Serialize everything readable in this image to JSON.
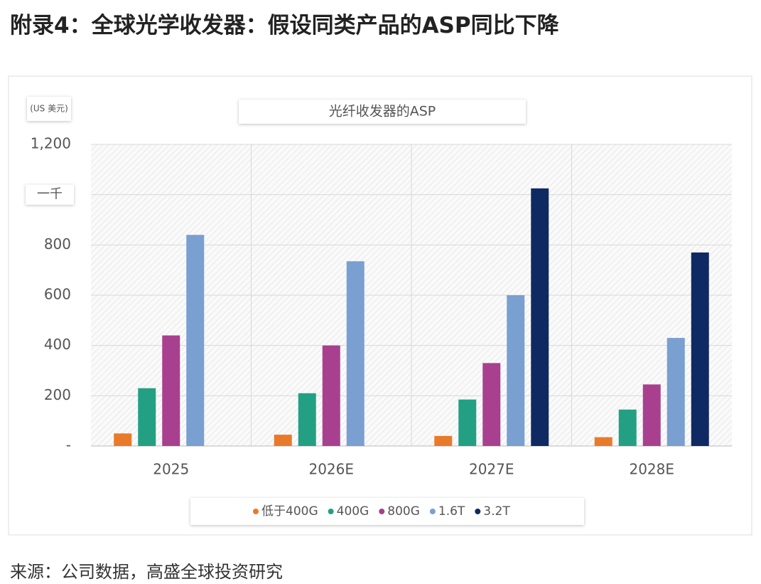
{
  "heading": "附录4：全球光学收发器：假设同类产品的ASP同比下降",
  "source": "来源：公司数据，高盛全球投资研究",
  "chart_data": {
    "type": "bar",
    "title": "光纤收发器的ASP",
    "y_label": "(US 美元)",
    "categories": [
      "2025",
      "2026E",
      "2027E",
      "2028E"
    ],
    "series": [
      {
        "name": "低于400G",
        "color": "#e87a2a",
        "values": [
          50,
          45,
          40,
          35
        ]
      },
      {
        "name": "400G",
        "color": "#23a083",
        "values": [
          230,
          210,
          185,
          145
        ]
      },
      {
        "name": "800G",
        "color": "#a8408f",
        "values": [
          440,
          400,
          330,
          245
        ]
      },
      {
        "name": "1.6T",
        "color": "#7a9fd1",
        "values": [
          840,
          735,
          600,
          430
        ]
      },
      {
        "name": "3.2T",
        "color": "#0f2a63",
        "values": [
          null,
          null,
          1025,
          770
        ]
      }
    ],
    "ylim": [
      0,
      1200
    ],
    "yticks": [
      {
        "value": 0,
        "label": "-"
      },
      200,
      400,
      600,
      800,
      {
        "value": 1000,
        "label": "一千"
      },
      {
        "value": 1200,
        "label": "1,200"
      }
    ],
    "grid": true
  }
}
